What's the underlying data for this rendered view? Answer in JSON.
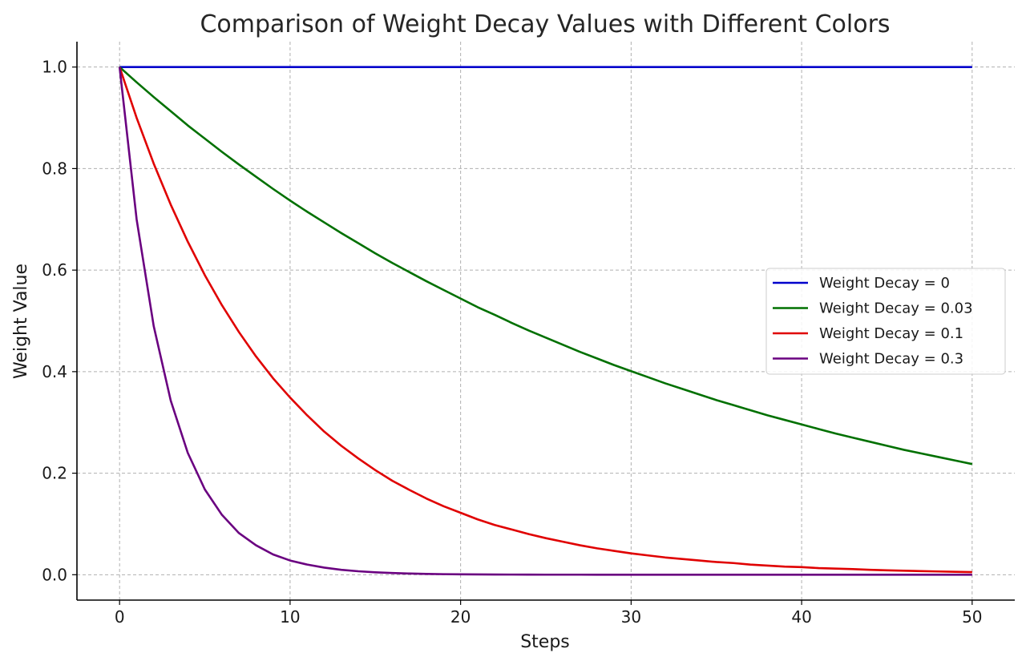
{
  "chart_data": {
    "type": "line",
    "title": "Comparison of Weight Decay Values with Different Colors",
    "xlabel": "Steps",
    "ylabel": "Weight Value",
    "xlim": [
      -2.5,
      52.5
    ],
    "ylim": [
      -0.05,
      1.05
    ],
    "xticks": [
      0,
      10,
      20,
      30,
      40,
      50
    ],
    "yticks": [
      0.0,
      0.2,
      0.4,
      0.6,
      0.8,
      1.0
    ],
    "xtick_labels": [
      "0",
      "10",
      "20",
      "30",
      "40",
      "50"
    ],
    "ytick_labels": [
      "0.0",
      "0.2",
      "0.4",
      "0.6",
      "0.8",
      "1.0"
    ],
    "grid": true,
    "legend_position": "center-right",
    "x": [
      0,
      1,
      2,
      3,
      4,
      5,
      6,
      7,
      8,
      9,
      10,
      11,
      12,
      13,
      14,
      15,
      16,
      17,
      18,
      19,
      20,
      21,
      22,
      23,
      24,
      25,
      26,
      27,
      28,
      29,
      30,
      31,
      32,
      33,
      34,
      35,
      36,
      37,
      38,
      39,
      40,
      41,
      42,
      43,
      44,
      45,
      46,
      47,
      48,
      49,
      50
    ],
    "series": [
      {
        "name": "Weight Decay = 0",
        "color": "#0000cc",
        "values": [
          1,
          1,
          1,
          1,
          1,
          1,
          1,
          1,
          1,
          1,
          1,
          1,
          1,
          1,
          1,
          1,
          1,
          1,
          1,
          1,
          1,
          1,
          1,
          1,
          1,
          1,
          1,
          1,
          1,
          1,
          1,
          1,
          1,
          1,
          1,
          1,
          1,
          1,
          1,
          1,
          1,
          1,
          1,
          1,
          1,
          1,
          1,
          1,
          1,
          1,
          1
        ]
      },
      {
        "name": "Weight Decay = 0.03",
        "color": "#007000",
        "values": [
          1.0,
          0.97,
          0.941,
          0.913,
          0.885,
          0.859,
          0.833,
          0.808,
          0.784,
          0.76,
          0.737,
          0.715,
          0.694,
          0.673,
          0.653,
          0.633,
          0.614,
          0.596,
          0.578,
          0.561,
          0.544,
          0.527,
          0.512,
          0.496,
          0.481,
          0.467,
          0.453,
          0.439,
          0.426,
          0.413,
          0.401,
          0.389,
          0.377,
          0.366,
          0.355,
          0.344,
          0.334,
          0.324,
          0.314,
          0.305,
          0.296,
          0.287,
          0.278,
          0.27,
          0.262,
          0.254,
          0.246,
          0.239,
          0.232,
          0.225,
          0.218
        ]
      },
      {
        "name": "Weight Decay = 0.1",
        "color": "#e00000",
        "values": [
          1.0,
          0.9,
          0.81,
          0.729,
          0.656,
          0.59,
          0.531,
          0.478,
          0.43,
          0.387,
          0.349,
          0.314,
          0.282,
          0.254,
          0.229,
          0.206,
          0.185,
          0.167,
          0.15,
          0.135,
          0.122,
          0.109,
          0.098,
          0.089,
          0.08,
          0.072,
          0.065,
          0.058,
          0.052,
          0.047,
          0.042,
          0.038,
          0.034,
          0.031,
          0.028,
          0.025,
          0.023,
          0.02,
          0.018,
          0.016,
          0.015,
          0.013,
          0.012,
          0.011,
          0.0097,
          0.0087,
          0.0079,
          0.0071,
          0.0064,
          0.0057,
          0.0052
        ]
      },
      {
        "name": "Weight Decay = 0.3",
        "color": "#6a0080",
        "values": [
          1.0,
          0.7,
          0.49,
          0.343,
          0.24,
          0.168,
          0.118,
          0.082,
          0.058,
          0.04,
          0.028,
          0.02,
          0.014,
          0.0097,
          0.0068,
          0.0047,
          0.0033,
          0.0023,
          0.0016,
          0.0011,
          0.0008,
          0.0006,
          0.0004,
          0.0003,
          0.0002,
          0.0001,
          0.0001,
          0.0001,
          0.0,
          0.0,
          0.0,
          0.0,
          0.0,
          0.0,
          0.0,
          0.0,
          0.0,
          0.0,
          0.0,
          0.0,
          0.0,
          0.0,
          0.0,
          0.0,
          0.0,
          0.0,
          0.0,
          0.0,
          0.0,
          0.0,
          0.0
        ]
      }
    ]
  }
}
